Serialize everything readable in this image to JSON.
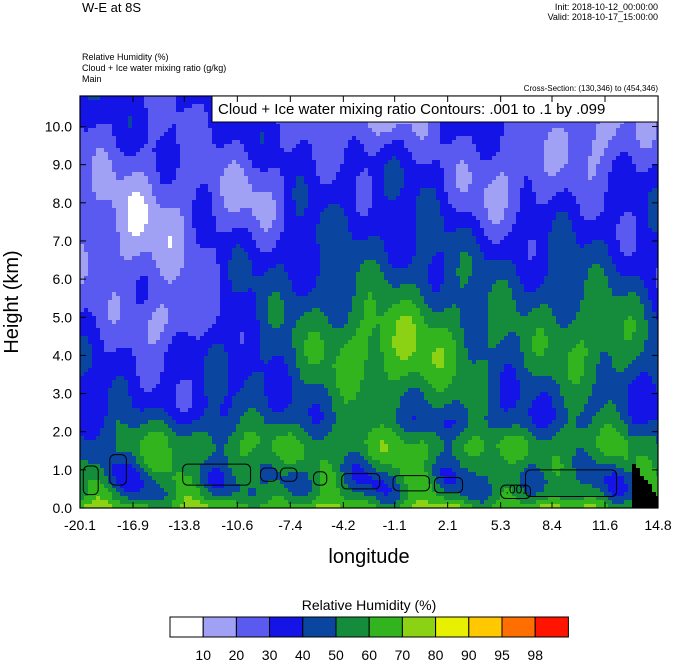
{
  "header": {
    "title": "W-E at 8S",
    "init": "Init: 2018-10-12_00:00:00",
    "valid": "Valid: 2018-10-17_15:00:00",
    "field1": "Relative Humidity   (%)",
    "field2": "Cloud + Ice water mixing ratio   (g/kg)",
    "field3": "Main",
    "cross_section": "Cross-Section: (130,346) to (454,346)"
  },
  "chart_data": {
    "type": "heatmap",
    "title": "W-E at 8S",
    "xlabel": "longitude",
    "ylabel": "Height (km)",
    "xlim": [
      -20.1,
      14.8
    ],
    "ylim": [
      0.0,
      10.8
    ],
    "x_ticks": [
      "-20.1",
      "-16.9",
      "-13.8",
      "-10.6",
      "-7.4",
      "-4.2",
      "-1.1",
      "2.1",
      "5.3",
      "8.4",
      "11.6",
      "14.8"
    ],
    "y_ticks": [
      "0.0",
      "1.0",
      "2.0",
      "3.0",
      "4.0",
      "5.0",
      "6.0",
      "7.0",
      "8.0",
      "9.0",
      "10.0"
    ],
    "contour_annotation": "Cloud + Ice water mixing ratio Contours: .001 to .1 by .099",
    "contour_label": ".001",
    "colorbar": {
      "title": "Relative Humidity  (%)",
      "levels": [
        "10",
        "20",
        "30",
        "40",
        "50",
        "60",
        "70",
        "80",
        "90",
        "95",
        "98"
      ],
      "colors": [
        "#ffffff",
        "#a0a0f5",
        "#5a5af0",
        "#1414e6",
        "#0a46a0",
        "#148c3c",
        "#32b41e",
        "#8cd214",
        "#e6f000",
        "#ffc800",
        "#ff6e00",
        "#ff1400"
      ]
    }
  }
}
